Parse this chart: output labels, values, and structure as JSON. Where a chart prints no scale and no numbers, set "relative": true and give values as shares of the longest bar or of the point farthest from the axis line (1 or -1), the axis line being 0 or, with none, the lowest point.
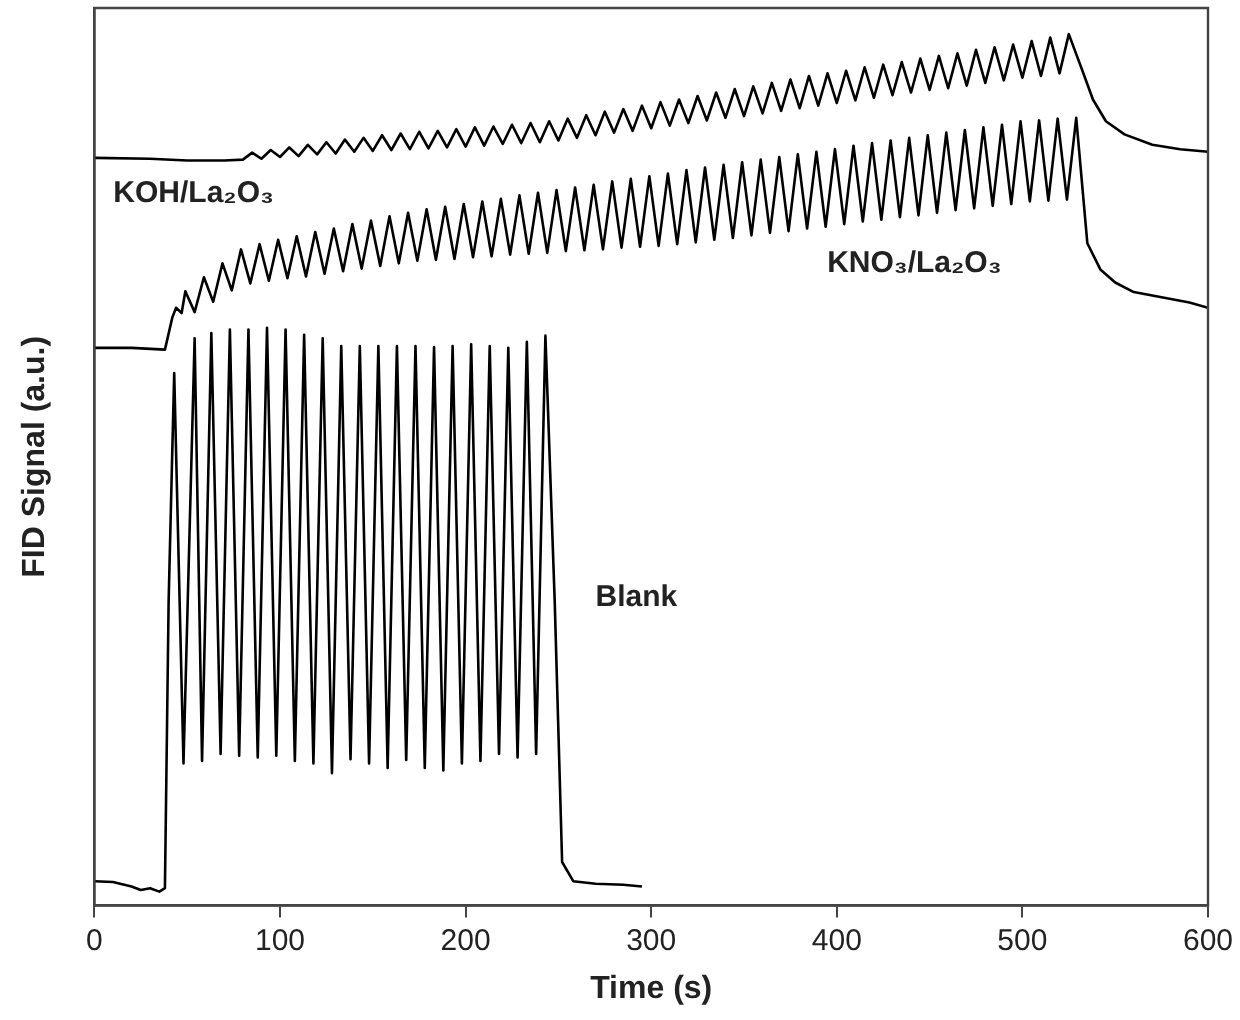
{
  "chart_data": {
    "type": "line",
    "relative": true,
    "xlabel": "Time (s)",
    "ylabel": "FID Signal (a.u.)",
    "xlim": [
      0,
      600
    ],
    "xticks": [
      0,
      100,
      200,
      300,
      400,
      500,
      600
    ],
    "series": [
      {
        "name": "KOH/La₂O₃",
        "color": "#000000",
        "x": [
          0,
          30,
          50,
          70,
          80,
          85,
          90,
          95,
          100,
          105,
          110,
          115,
          120,
          125,
          130,
          135,
          140,
          145,
          150,
          155,
          160,
          165,
          170,
          175,
          180,
          185,
          190,
          195,
          200,
          205,
          210,
          215,
          220,
          225,
          230,
          235,
          240,
          245,
          250,
          255,
          260,
          265,
          270,
          275,
          280,
          285,
          290,
          295,
          300,
          305,
          310,
          315,
          320,
          325,
          330,
          335,
          340,
          345,
          350,
          355,
          360,
          365,
          370,
          375,
          380,
          385,
          390,
          395,
          400,
          405,
          410,
          415,
          420,
          425,
          430,
          435,
          440,
          445,
          450,
          455,
          460,
          465,
          470,
          475,
          480,
          485,
          490,
          495,
          500,
          505,
          510,
          515,
          520,
          525,
          532,
          538,
          545,
          555,
          570,
          585,
          600
        ],
        "values": [
          0.858,
          0.857,
          0.855,
          0.855,
          0.856,
          0.864,
          0.857,
          0.867,
          0.859,
          0.87,
          0.86,
          0.873,
          0.862,
          0.876,
          0.863,
          0.879,
          0.865,
          0.881,
          0.866,
          0.884,
          0.867,
          0.886,
          0.868,
          0.888,
          0.869,
          0.889,
          0.87,
          0.891,
          0.871,
          0.893,
          0.872,
          0.894,
          0.874,
          0.896,
          0.875,
          0.898,
          0.876,
          0.9,
          0.878,
          0.903,
          0.881,
          0.907,
          0.884,
          0.911,
          0.887,
          0.914,
          0.889,
          0.918,
          0.892,
          0.922,
          0.895,
          0.925,
          0.898,
          0.929,
          0.901,
          0.933,
          0.904,
          0.937,
          0.906,
          0.94,
          0.909,
          0.944,
          0.912,
          0.948,
          0.915,
          0.952,
          0.918,
          0.955,
          0.921,
          0.958,
          0.924,
          0.962,
          0.927,
          0.965,
          0.93,
          0.968,
          0.933,
          0.972,
          0.936,
          0.975,
          0.938,
          0.978,
          0.941,
          0.982,
          0.944,
          0.985,
          0.947,
          0.988,
          0.95,
          0.992,
          0.952,
          0.996,
          0.955,
          1.0,
          0.96,
          0.925,
          0.9,
          0.885,
          0.873,
          0.868,
          0.865
        ]
      },
      {
        "name": "KNO₃/La₂O₃",
        "color": "#000000",
        "x": [
          0,
          20,
          38,
          42,
          44,
          47,
          49,
          54,
          59,
          64,
          69,
          74,
          79,
          84,
          89,
          94,
          99,
          104,
          109,
          114,
          119,
          124,
          129,
          134,
          139,
          144,
          149,
          154,
          159,
          164,
          169,
          174,
          179,
          184,
          189,
          194,
          199,
          204,
          209,
          214,
          219,
          224,
          229,
          234,
          239,
          244,
          249,
          254,
          259,
          264,
          269,
          274,
          279,
          284,
          289,
          294,
          299,
          304,
          309,
          314,
          319,
          324,
          329,
          334,
          339,
          344,
          349,
          354,
          359,
          364,
          369,
          374,
          379,
          384,
          389,
          394,
          399,
          404,
          409,
          414,
          419,
          424,
          429,
          434,
          439,
          444,
          449,
          454,
          459,
          464,
          469,
          474,
          479,
          484,
          489,
          494,
          499,
          504,
          509,
          514,
          519,
          524,
          529,
          535,
          542,
          550,
          560,
          575,
          590,
          600
        ],
        "values": [
          0.64,
          0.64,
          0.638,
          0.675,
          0.686,
          0.68,
          0.705,
          0.681,
          0.721,
          0.693,
          0.737,
          0.706,
          0.753,
          0.714,
          0.759,
          0.717,
          0.764,
          0.72,
          0.768,
          0.722,
          0.773,
          0.725,
          0.777,
          0.728,
          0.782,
          0.731,
          0.786,
          0.734,
          0.791,
          0.737,
          0.795,
          0.74,
          0.799,
          0.741,
          0.802,
          0.742,
          0.805,
          0.744,
          0.808,
          0.745,
          0.811,
          0.747,
          0.815,
          0.748,
          0.818,
          0.749,
          0.821,
          0.751,
          0.824,
          0.752,
          0.827,
          0.753,
          0.831,
          0.755,
          0.834,
          0.756,
          0.837,
          0.757,
          0.84,
          0.759,
          0.844,
          0.761,
          0.847,
          0.764,
          0.85,
          0.766,
          0.853,
          0.769,
          0.856,
          0.772,
          0.859,
          0.774,
          0.862,
          0.777,
          0.865,
          0.779,
          0.868,
          0.782,
          0.872,
          0.785,
          0.875,
          0.787,
          0.878,
          0.79,
          0.881,
          0.792,
          0.884,
          0.795,
          0.887,
          0.798,
          0.89,
          0.8,
          0.893,
          0.803,
          0.896,
          0.805,
          0.9,
          0.808,
          0.901,
          0.809,
          0.903,
          0.81,
          0.904,
          0.76,
          0.73,
          0.715,
          0.704,
          0.698,
          0.692,
          0.686
        ]
      },
      {
        "name": "Blank",
        "color": "#000000",
        "x": [
          0,
          10,
          20,
          25,
          30,
          35,
          38,
          40,
          43,
          48,
          54,
          58,
          63,
          68,
          73,
          78,
          83,
          88,
          93,
          98,
          103,
          108,
          113,
          118,
          123,
          128,
          133,
          138,
          143,
          148,
          153,
          158,
          163,
          168,
          173,
          178,
          183,
          188,
          193,
          198,
          203,
          208,
          213,
          218,
          223,
          228,
          233,
          238,
          243,
          248,
          252,
          258,
          270,
          285,
          295
        ],
        "values": [
          0.028,
          0.027,
          0.022,
          0.018,
          0.02,
          0.016,
          0.02,
          0.35,
          0.611,
          0.163,
          0.651,
          0.166,
          0.657,
          0.174,
          0.661,
          0.172,
          0.661,
          0.17,
          0.663,
          0.172,
          0.661,
          0.166,
          0.655,
          0.163,
          0.651,
          0.152,
          0.642,
          0.168,
          0.642,
          0.163,
          0.642,
          0.158,
          0.642,
          0.167,
          0.642,
          0.158,
          0.641,
          0.155,
          0.642,
          0.163,
          0.644,
          0.166,
          0.642,
          0.174,
          0.64,
          0.17,
          0.647,
          0.174,
          0.654,
          0.35,
          0.05,
          0.028,
          0.025,
          0.024,
          0.022
        ]
      }
    ]
  }
}
